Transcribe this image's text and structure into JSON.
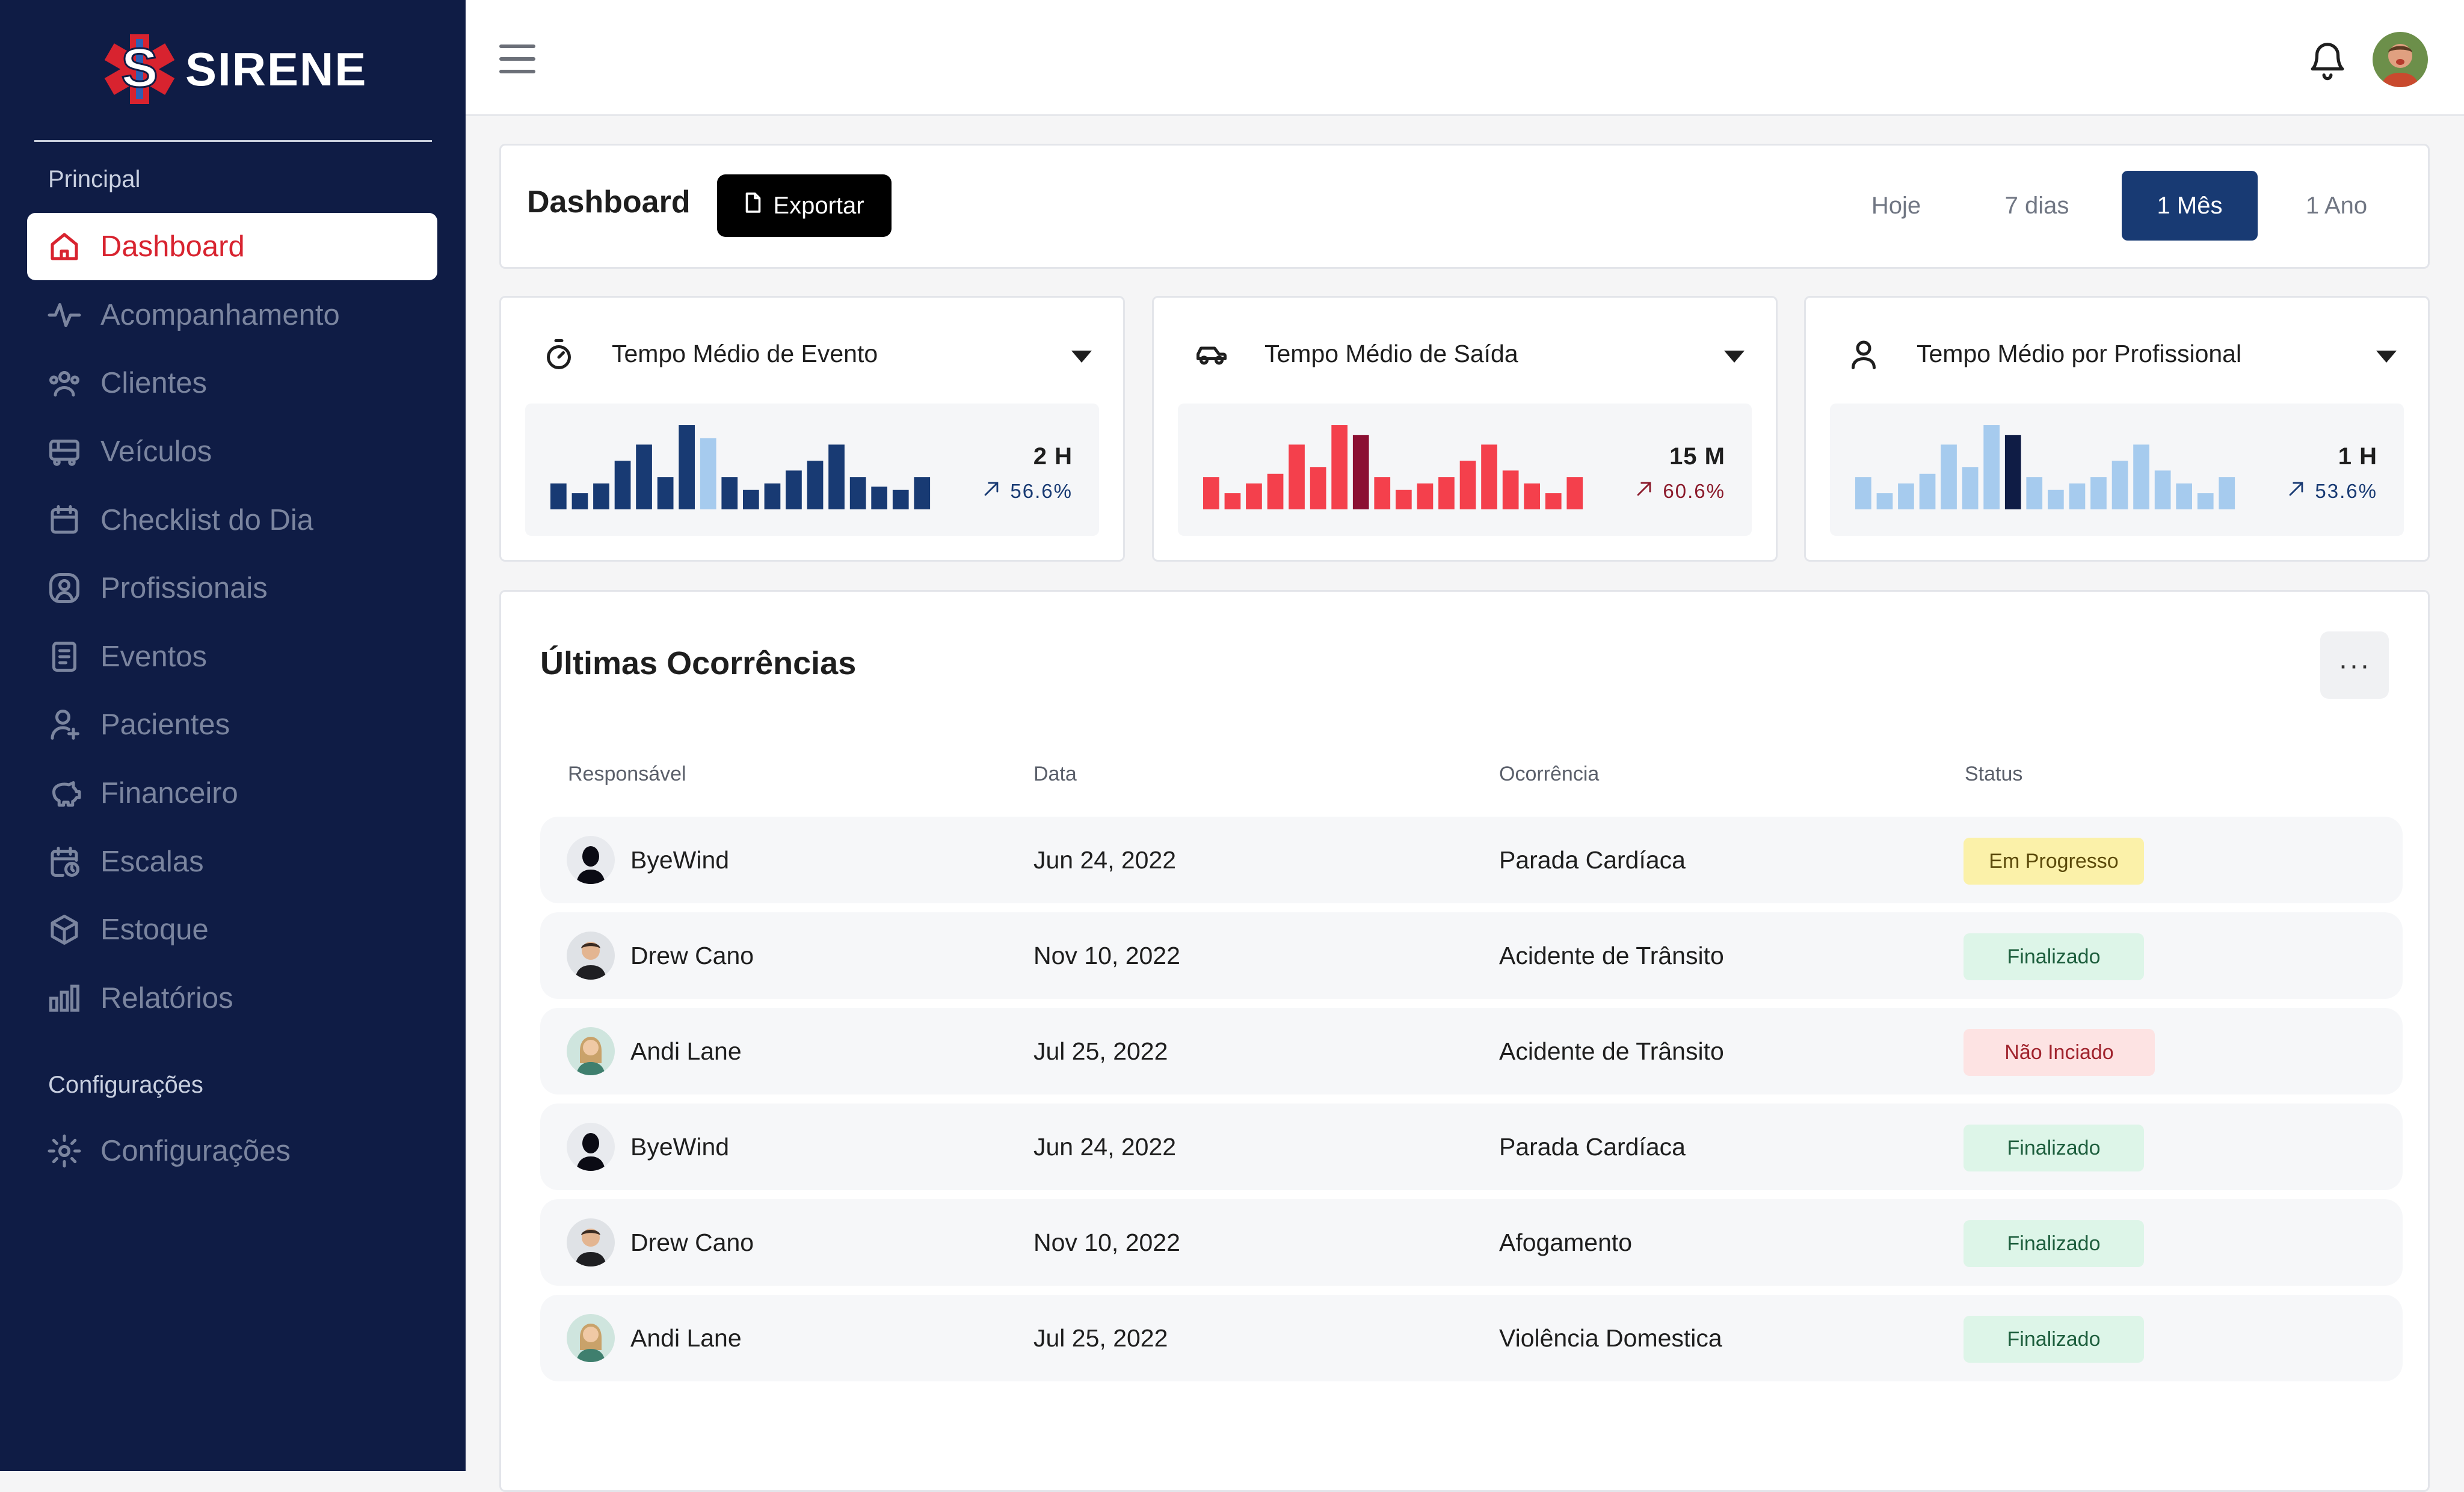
{
  "brand": {
    "name": "SIRENE"
  },
  "sidebar": {
    "section_main": "Principal",
    "section_config": "Configurações",
    "items": [
      {
        "label": "Dashboard",
        "icon": "home-icon",
        "active": true
      },
      {
        "label": "Acompanhamento",
        "icon": "activity-icon"
      },
      {
        "label": "Clientes",
        "icon": "users-icon"
      },
      {
        "label": "Veículos",
        "icon": "bus-icon"
      },
      {
        "label": "Checklist do Dia",
        "icon": "calendar-icon"
      },
      {
        "label": "Profissionais",
        "icon": "user-circle-icon"
      },
      {
        "label": "Eventos",
        "icon": "document-icon"
      },
      {
        "label": "Pacientes",
        "icon": "patient-icon"
      },
      {
        "label": "Financeiro",
        "icon": "piggy-bank-icon"
      },
      {
        "label": "Escalas",
        "icon": "calendar-clock-icon"
      },
      {
        "label": "Estoque",
        "icon": "box-icon"
      },
      {
        "label": "Relatórios",
        "icon": "bar-chart-icon"
      }
    ],
    "config_item": {
      "label": "Configurações",
      "icon": "gear-icon"
    }
  },
  "topbar": {
    "menu_icon": "hamburger-icon",
    "notification_icon": "bell-icon"
  },
  "header": {
    "title": "Dashboard",
    "export_label": "Exportar",
    "ranges": [
      "Hoje",
      "7 dias",
      "1 Mês",
      "1 Ano"
    ],
    "active_range": "1 Mês"
  },
  "cards": [
    {
      "title": "Tempo Médio de Evento",
      "icon": "stopwatch-icon",
      "value": "2 H",
      "change": "56.6%",
      "change_color": "#183a73",
      "trend": "up"
    },
    {
      "title": "Tempo Médio de Saída",
      "icon": "car-icon",
      "value": "15 M",
      "change": "60.6%",
      "change_color": "#8b1a2b",
      "trend": "up"
    },
    {
      "title": "Tempo Médio por Profissional",
      "icon": "user-icon",
      "value": "1 H",
      "change": "53.6%",
      "change_color": "#183a73",
      "trend": "up"
    }
  ],
  "chart_data": [
    {
      "type": "bar",
      "values": [
        8,
        5,
        8,
        15,
        20,
        10,
        26,
        22,
        10,
        6,
        8,
        12,
        15,
        20,
        10,
        7,
        6,
        10
      ],
      "highlight_index": 7,
      "color": "#183a73",
      "highlight_color": "#a6cbee"
    },
    {
      "type": "bar",
      "values": [
        10,
        5,
        8,
        11,
        20,
        13,
        26,
        23,
        10,
        6,
        8,
        10,
        15,
        20,
        12,
        8,
        5,
        10
      ],
      "highlight_index": 7,
      "color": "#f4404c",
      "highlight_color": "#8b1033"
    },
    {
      "type": "bar",
      "values": [
        10,
        5,
        8,
        11,
        20,
        13,
        26,
        23,
        10,
        6,
        8,
        10,
        15,
        20,
        12,
        8,
        5,
        10
      ],
      "highlight_index": 7,
      "color": "#a6cbee",
      "highlight_color": "#0f1c45"
    }
  ],
  "occurrences": {
    "title": "Últimas Ocorrências",
    "more_label": "···",
    "columns": [
      "Responsável",
      "Data",
      "Ocorrência",
      "Status"
    ],
    "rows": [
      {
        "name": "ByeWind",
        "date": "Jun 24, 2022",
        "type": "Parada Cardíaca",
        "status": "Em Progresso",
        "status_kind": "progress",
        "avatar": "byewind"
      },
      {
        "name": "Drew Cano",
        "date": "Nov 10, 2022",
        "type": "Acidente de Trânsito",
        "status": "Finalizado",
        "status_kind": "done",
        "avatar": "drew"
      },
      {
        "name": "Andi Lane",
        "date": "Jul 25, 2022",
        "type": "Acidente de Trânsito",
        "status": "Não Inciado",
        "status_kind": "pending",
        "avatar": "andi"
      },
      {
        "name": "ByeWind",
        "date": "Jun 24, 2022",
        "type": "Parada Cardíaca",
        "status": "Finalizado",
        "status_kind": "done",
        "avatar": "byewind"
      },
      {
        "name": "Drew Cano",
        "date": "Nov 10, 2022",
        "type": "Afogamento",
        "status": "Finalizado",
        "status_kind": "done",
        "avatar": "drew"
      },
      {
        "name": "Andi Lane",
        "date": "Jul 25, 2022",
        "type": "Violência Domestica",
        "status": "Finalizado",
        "status_kind": "done",
        "avatar": "andi"
      }
    ]
  },
  "colors": {
    "sidebar_bg": "#0f1c45",
    "accent_red": "#d8232f",
    "primary_blue": "#183a73",
    "badge_progress_bg": "#fbf1a9",
    "badge_done_bg": "#ddf5e8",
    "badge_pending_bg": "#fde3e3"
  }
}
